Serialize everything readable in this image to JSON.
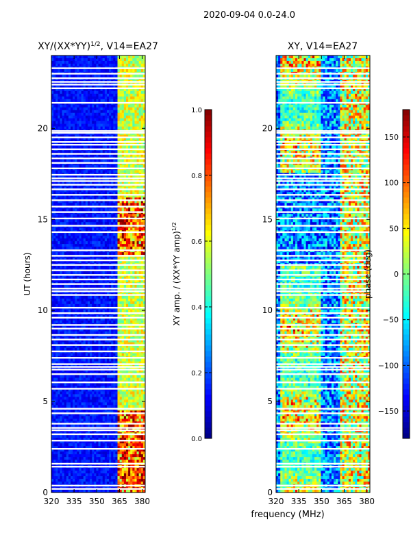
{
  "figure_title": "2020-09-04 0.0-24.0",
  "shared_xlabel": "frequency (MHz)",
  "chart_data": [
    {
      "type": "heatmap",
      "title_prefix": "XY/(XX*YY)",
      "title_sup": "1/2",
      "title_suffix": ", V14=EA27",
      "ylabel": "UT (hours)",
      "xlabel": "frequency (MHz)",
      "xlim": [
        320,
        382
      ],
      "ylim": [
        0,
        24
      ],
      "xticks": [
        320,
        335,
        350,
        365,
        380
      ],
      "yticks": [
        0,
        5,
        10,
        15,
        20
      ],
      "colormap": "jet",
      "features": {
        "blank_rows_ut": [
          0.2,
          0.38,
          1.42,
          1.58,
          2.4,
          2.85,
          3.2,
          3.42,
          3.55,
          3.78,
          4.35,
          4.6,
          5.7,
          6.05,
          6.5,
          6.75,
          6.9,
          7.05,
          7.4,
          7.75,
          8.1,
          8.4,
          8.65,
          9.0,
          9.2,
          9.6,
          9.85,
          10.15,
          10.85,
          11.05,
          11.2,
          11.45,
          11.7,
          11.95,
          12.2,
          12.5,
          12.75,
          13.0,
          13.3,
          14.3,
          14.65,
          15.05,
          15.4,
          15.7,
          16.05,
          16.35,
          16.65,
          16.9,
          17.1,
          17.25,
          17.45,
          17.8,
          18.1,
          18.35,
          18.6,
          18.85,
          19.1,
          19.25,
          19.5,
          19.75,
          19.85,
          21.4,
          22.2,
          22.4,
          22.55,
          22.75,
          23.0,
          23.3
        ]
      },
      "colorbar": {
        "label_prefix": "XY amp. / (XX*YY amp)",
        "label_sup": "1/2",
        "range": [
          0.0,
          1.0
        ],
        "ticks": [
          0.0,
          0.2,
          0.4,
          0.6,
          0.8,
          1.0
        ],
        "tick_labels": [
          "0.0",
          "0.2",
          "0.4",
          "0.6",
          "0.8",
          "1.0"
        ]
      }
    },
    {
      "type": "heatmap",
      "title_prefix": "XY, V14=EA27",
      "title_sup": "",
      "title_suffix": "",
      "ylabel": "",
      "xlabel": "frequency (MHz)",
      "xlim": [
        320,
        382
      ],
      "ylim": [
        0,
        24
      ],
      "xticks": [
        320,
        335,
        350,
        365,
        380
      ],
      "yticks": [
        0,
        5,
        10,
        15,
        20
      ],
      "colormap": "jet",
      "features": {
        "blank_rows_ut": [
          0.2,
          0.38,
          1.42,
          1.58,
          2.4,
          2.85,
          3.2,
          3.42,
          3.55,
          3.78,
          4.35,
          4.6,
          5.7,
          6.05,
          6.5,
          6.75,
          6.9,
          7.05,
          7.4,
          7.75,
          8.1,
          8.4,
          8.65,
          9.0,
          9.2,
          9.6,
          9.85,
          10.15,
          10.85,
          11.05,
          11.2,
          11.45,
          11.7,
          11.95,
          12.2,
          12.5,
          12.75,
          13.0,
          13.3,
          14.3,
          14.65,
          15.05,
          15.4,
          15.7,
          16.05,
          16.35,
          16.65,
          16.9,
          17.1,
          17.25,
          17.45,
          17.8,
          18.1,
          18.35,
          18.6,
          18.85,
          19.1,
          19.25,
          19.5,
          19.75,
          19.85,
          21.4,
          22.2,
          22.4,
          22.55,
          22.75,
          23.0,
          23.3
        ]
      },
      "colorbar": {
        "label_prefix": "phase (deg)",
        "label_sup": "",
        "range": [
          -180,
          180
        ],
        "ticks": [
          -150,
          -100,
          -50,
          0,
          50,
          100,
          150
        ],
        "tick_labels": [
          "−150",
          "−100",
          "−50",
          "0",
          "50",
          "100",
          "150"
        ]
      }
    }
  ]
}
